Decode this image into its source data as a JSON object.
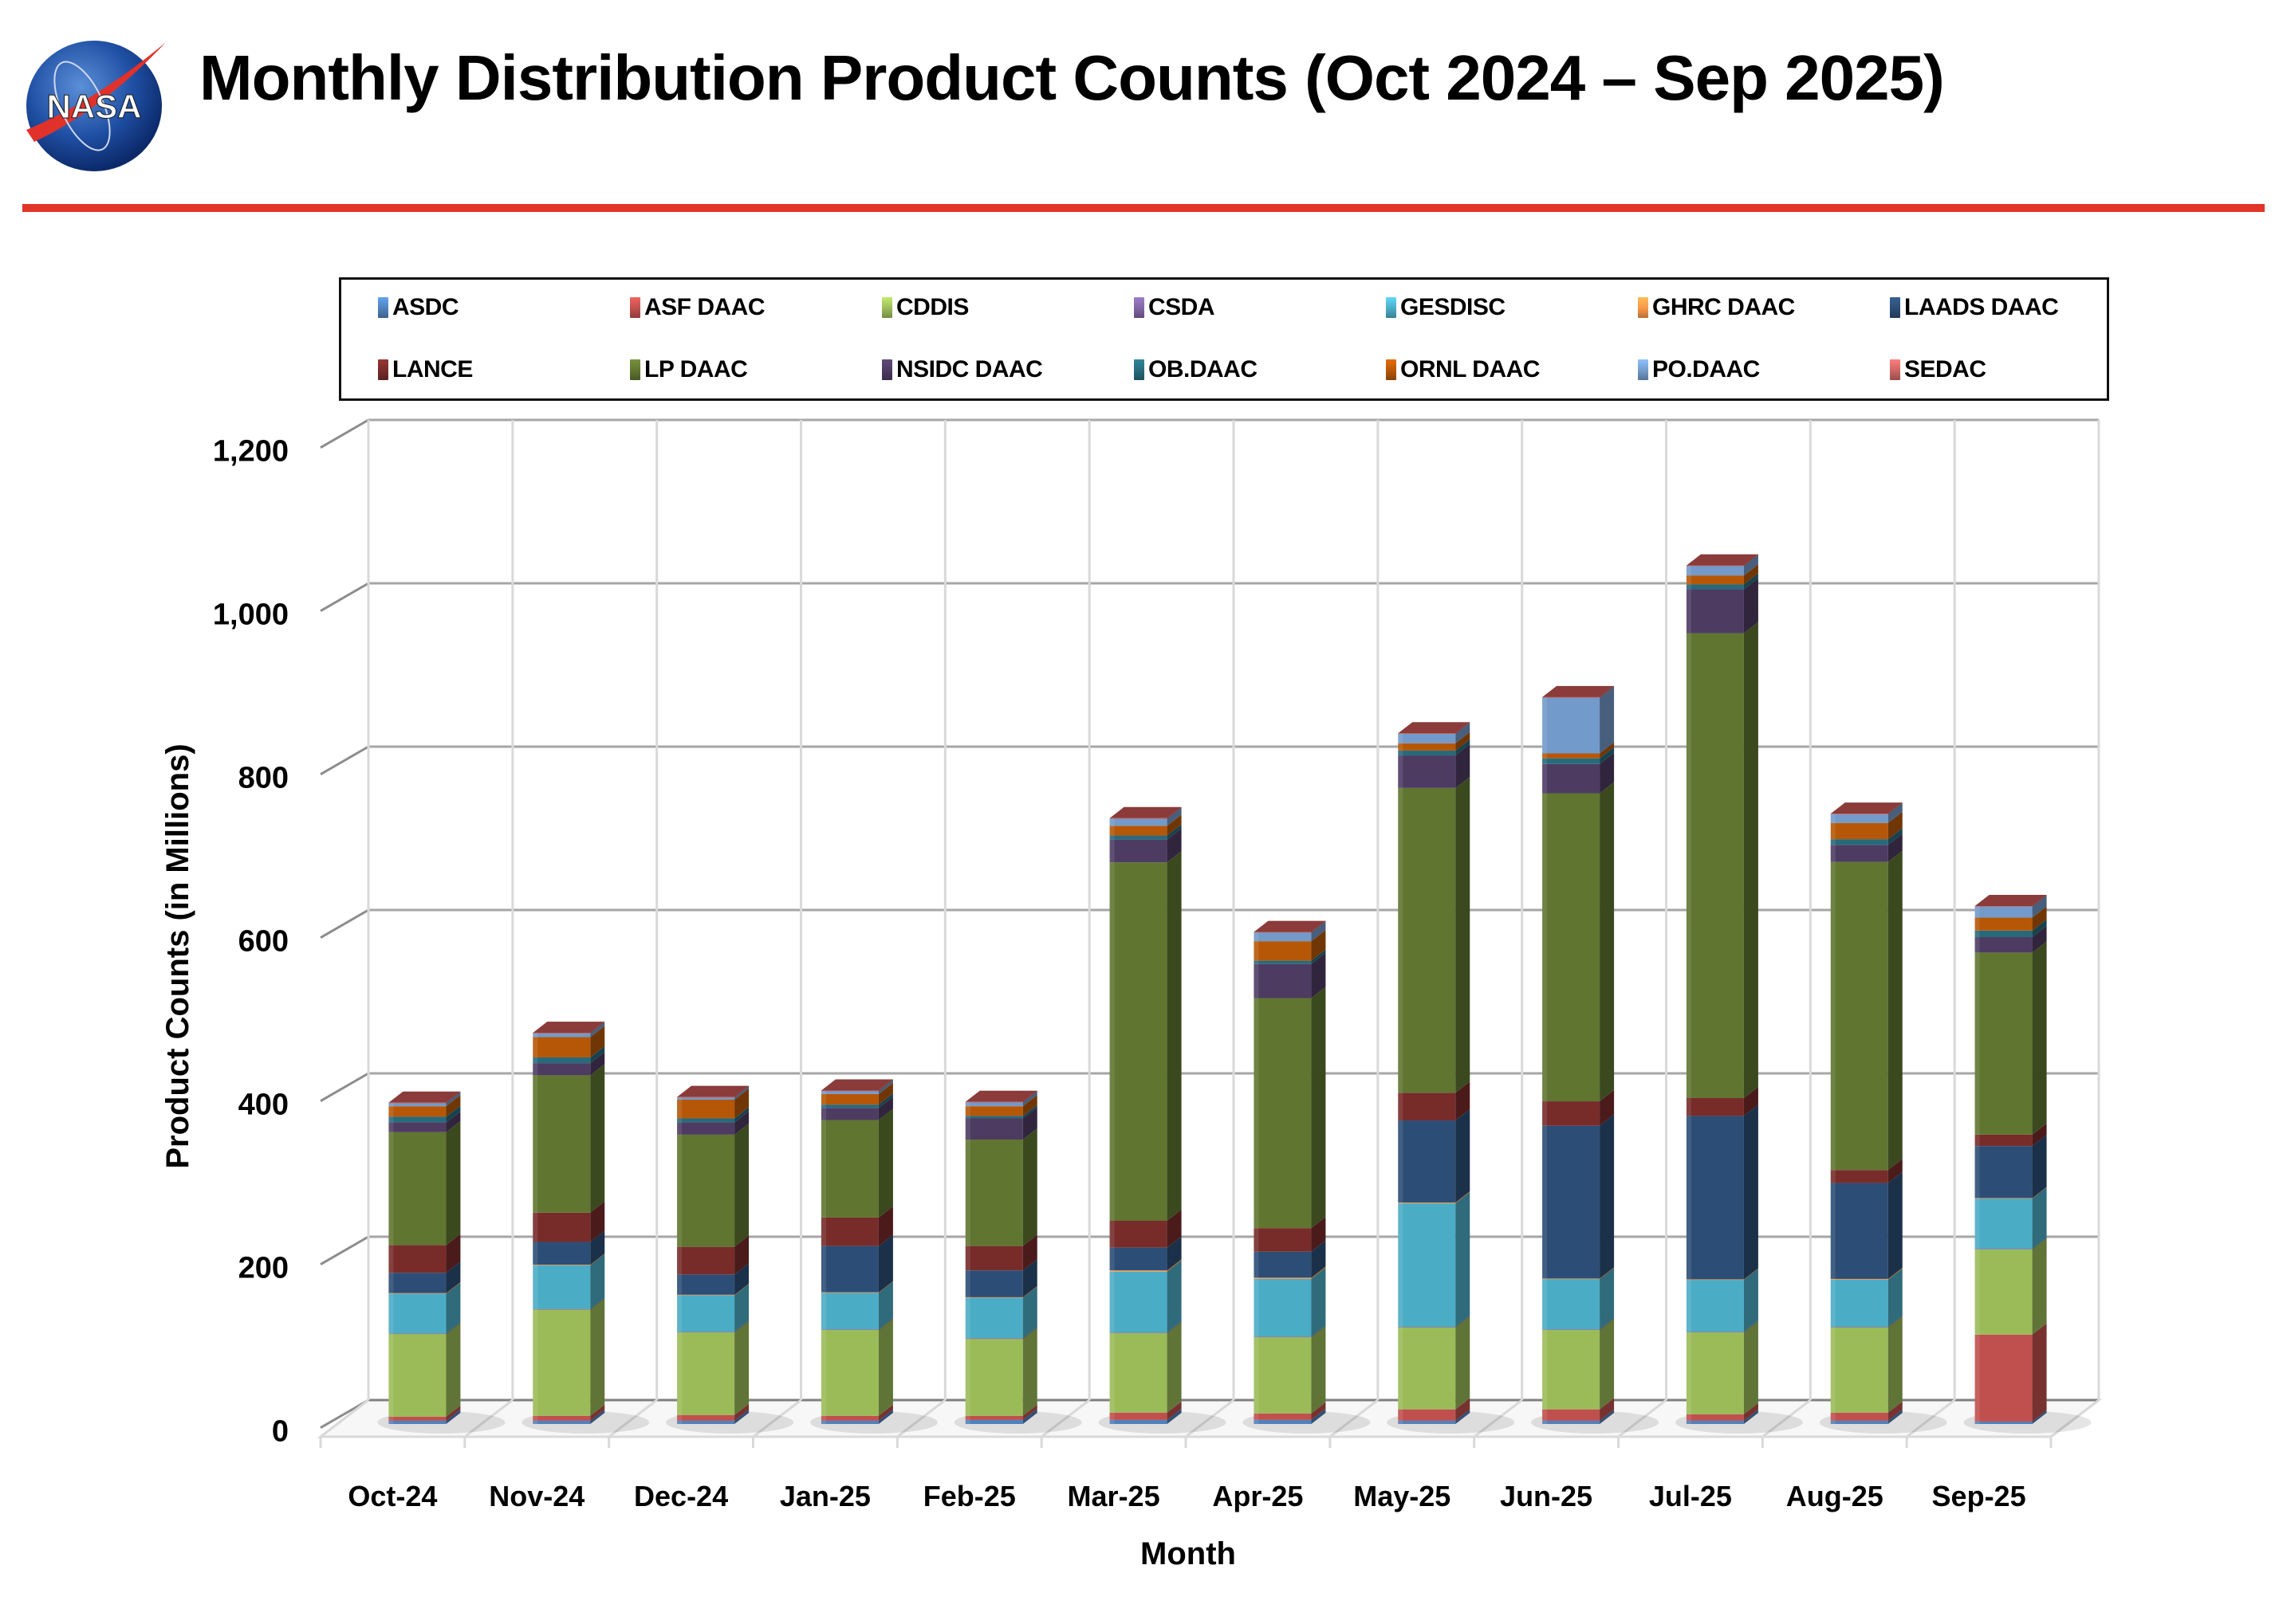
{
  "header": {
    "logo_text": "NASA",
    "title": "Monthly Distribution Product Counts (Oct 2024 – Sep 2025)",
    "rule_color": "#e3342a"
  },
  "chart_data": {
    "type": "bar",
    "stacked": true,
    "style": "3d-stacked-column",
    "title": "",
    "xlabel": "Month",
    "ylabel": "Product Counts (in Millions)",
    "ylim": [
      0,
      1200
    ],
    "yticks": [
      0,
      200,
      400,
      600,
      800,
      1000,
      1200
    ],
    "ytick_labels": [
      "0",
      "200",
      "400",
      "600",
      "800",
      "1,000",
      "1,200"
    ],
    "grid": true,
    "legend_position": "top",
    "categories": [
      "Oct-24",
      "Nov-24",
      "Dec-24",
      "Jan-25",
      "Feb-25",
      "Mar-25",
      "Apr-25",
      "May-25",
      "Jun-25",
      "Jul-25",
      "Aug-25",
      "Sep-25"
    ],
    "series": [
      {
        "name": "ASDC",
        "color": "#4f81bd",
        "values": [
          4,
          4,
          4,
          4,
          5,
          5,
          5,
          4,
          4,
          4,
          4,
          3
        ]
      },
      {
        "name": "ASF DAAC",
        "color": "#c0504d",
        "values": [
          5,
          6,
          7,
          6,
          5,
          9,
          8,
          14,
          14,
          8,
          10,
          107
        ]
      },
      {
        "name": "CDDIS",
        "color": "#9bbb59",
        "values": [
          102,
          131,
          102,
          106,
          95,
          98,
          94,
          101,
          98,
          101,
          105,
          105
        ]
      },
      {
        "name": "CSDA",
        "color": "#8064a2",
        "values": [
          0.5,
          0.5,
          0.5,
          0.5,
          0.5,
          0.5,
          0.5,
          0.5,
          0.5,
          0.5,
          0.5,
          0.5
        ]
      },
      {
        "name": "GESDISC",
        "color": "#4bacc6",
        "values": [
          49,
          54,
          45,
          45,
          50,
          75,
          71,
          152,
          62,
          64,
          58,
          62
        ]
      },
      {
        "name": "GHRC DAAC",
        "color": "#f79646",
        "values": [
          0.5,
          0.5,
          0.5,
          0.5,
          0.5,
          1.5,
          1.5,
          1,
          0.5,
          0.5,
          1,
          0.5
        ]
      },
      {
        "name": "LAADS DAAC",
        "color": "#2c4d75",
        "values": [
          25,
          28,
          25,
          57,
          33,
          28,
          32,
          101,
          188,
          201,
          118,
          64
        ]
      },
      {
        "name": "LANCE",
        "color": "#772c2a",
        "values": [
          34,
          36,
          34,
          35,
          30,
          33,
          29,
          34,
          30,
          22,
          16,
          14
        ]
      },
      {
        "name": "LP DAAC",
        "color": "#5f7530",
        "values": [
          139,
          169,
          138,
          120,
          131,
          441,
          283,
          375,
          379,
          572,
          379,
          224
        ]
      },
      {
        "name": "NSIDC DAAC",
        "color": "#4d3b62",
        "values": [
          12,
          15,
          15,
          15,
          26,
          28,
          42,
          40,
          36,
          54,
          21,
          19
        ]
      },
      {
        "name": "OB.DAAC",
        "color": "#276a7c",
        "values": [
          7,
          7,
          5,
          4,
          3,
          5,
          4,
          6,
          7,
          6,
          7,
          8
        ]
      },
      {
        "name": "ORNL DAAC",
        "color": "#b65708",
        "values": [
          13,
          25,
          23,
          13,
          12,
          12,
          24,
          9,
          6,
          11,
          20,
          16
        ]
      },
      {
        "name": "PO.DAAC",
        "color": "#729aca",
        "values": [
          4,
          5,
          3,
          4,
          5,
          9,
          11,
          12,
          69,
          12,
          11,
          14
        ]
      },
      {
        "name": "SEDAC",
        "color": "#ca6563",
        "values": [
          0.3,
          0.3,
          0.3,
          0.3,
          0.3,
          0.3,
          0.3,
          0.3,
          0.3,
          0.3,
          0.3,
          0.3
        ]
      }
    ]
  }
}
